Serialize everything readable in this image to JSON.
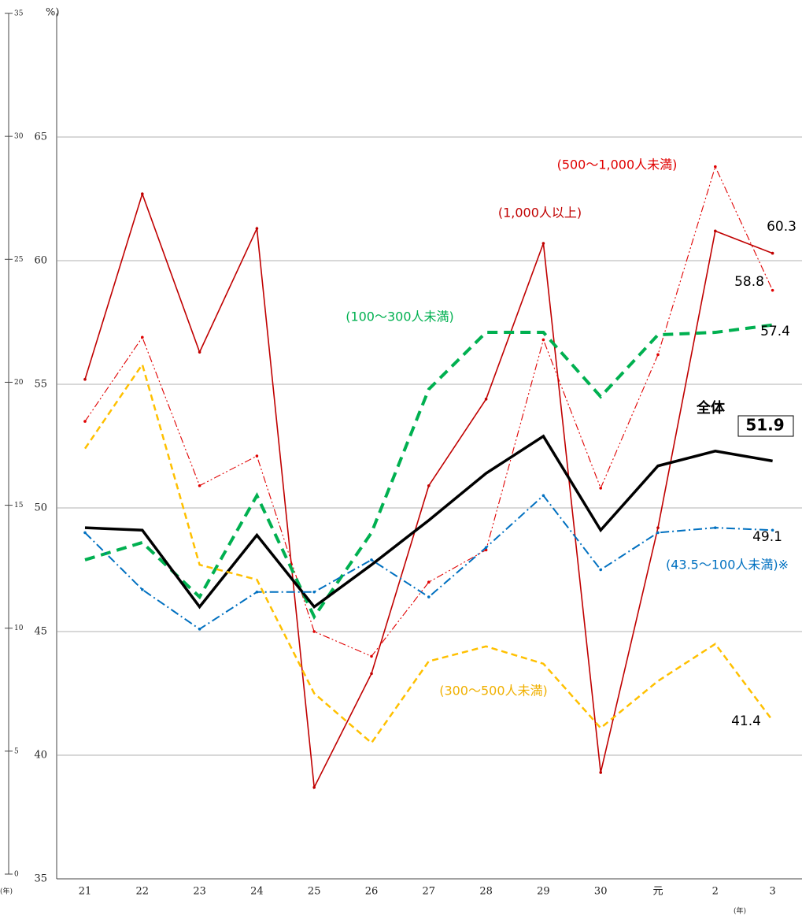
{
  "chart_data": {
    "type": "line",
    "y_label": "%)",
    "x_unit": "(年)",
    "y2_unit": "(年)",
    "categories": [
      "21",
      "22",
      "23",
      "24",
      "25",
      "26",
      "27",
      "28",
      "29",
      "30",
      "元",
      "2",
      "3"
    ],
    "ylim": [
      35,
      70
    ],
    "yticks": [
      35,
      40,
      45,
      50,
      55,
      60,
      65
    ],
    "y2lim": [
      0,
      35
    ],
    "y2ticks": [
      0,
      5,
      10,
      15,
      20,
      25,
      30,
      35
    ],
    "grid": true,
    "series": [
      {
        "name": "(1,000人以上)",
        "color": "#c00000",
        "values": [
          55.2,
          62.7,
          56.3,
          61.3,
          38.7,
          43.3,
          50.9,
          54.4,
          60.7,
          39.3,
          49.2,
          61.2,
          60.3
        ]
      },
      {
        "name": "(500～1,000人未満)",
        "color": "#e00000",
        "values": [
          53.5,
          56.9,
          50.9,
          52.1,
          45.0,
          44.0,
          47.0,
          48.3,
          56.8,
          50.8,
          56.2,
          63.8,
          58.8
        ]
      },
      {
        "name": "(100～300人未満)",
        "color": "#00b050",
        "values": [
          47.9,
          48.6,
          46.4,
          50.5,
          45.6,
          49.0,
          54.8,
          57.1,
          57.1,
          54.5,
          57.0,
          57.1,
          57.4
        ]
      },
      {
        "name": "全体",
        "color": "#000000",
        "values": [
          49.2,
          49.1,
          46.0,
          48.9,
          46.0,
          47.7,
          49.5,
          51.4,
          52.9,
          49.1,
          51.7,
          52.3,
          51.9
        ]
      },
      {
        "name": "(43.5～100人未満)※",
        "color": "#0070c0",
        "values": [
          49.0,
          46.7,
          45.1,
          46.6,
          46.6,
          47.9,
          46.4,
          48.4,
          50.5,
          47.5,
          49.0,
          49.2,
          49.1
        ]
      },
      {
        "name": "(300～500人未満)",
        "color": "#ffc000",
        "values": [
          52.4,
          55.8,
          47.7,
          47.1,
          42.5,
          40.5,
          43.8,
          44.4,
          43.7,
          41.1,
          43.0,
          44.5,
          41.4
        ]
      }
    ]
  }
}
